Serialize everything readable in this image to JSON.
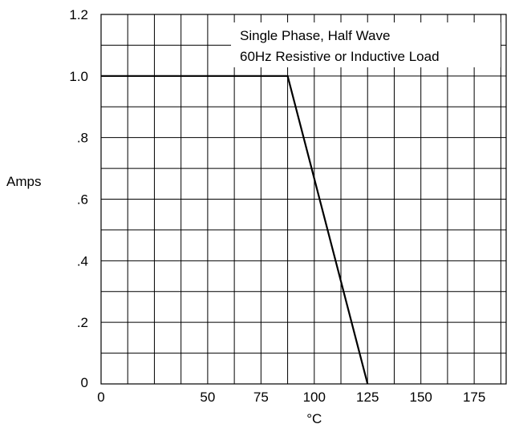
{
  "chart_data": {
    "type": "line",
    "xlabel": "°C",
    "ylabel": "Amps",
    "xlim": [
      0,
      190
    ],
    "ylim": [
      0,
      1.2
    ],
    "x_ticks": [
      {
        "value": 0,
        "label": "0"
      },
      {
        "value": 50,
        "label": "50"
      },
      {
        "value": 75,
        "label": "75"
      },
      {
        "value": 100,
        "label": "100"
      },
      {
        "value": 125,
        "label": "125"
      },
      {
        "value": 150,
        "label": "150"
      },
      {
        "value": 175,
        "label": "175"
      }
    ],
    "y_ticks": [
      {
        "value": 0,
        "label": "0"
      },
      {
        "value": 0.2,
        "label": ".2"
      },
      {
        "value": 0.4,
        "label": ".4"
      },
      {
        "value": 0.6,
        "label": ".6"
      },
      {
        "value": 0.8,
        "label": ".8"
      },
      {
        "value": 1.0,
        "label": "1.0"
      },
      {
        "value": 1.2,
        "label": "1.2"
      }
    ],
    "grid": true,
    "grid_x_step": 12.5,
    "grid_y_step": 0.1,
    "annotation": [
      "Single Phase, Half Wave",
      "60Hz Resistive or Inductive Load"
    ],
    "series": [
      {
        "x": [
          0,
          87.5,
          125
        ],
        "y": [
          1.0,
          1.0,
          0
        ]
      }
    ],
    "colors": {
      "line": "#000000",
      "grid": "#000000",
      "background": "#ffffff"
    }
  }
}
